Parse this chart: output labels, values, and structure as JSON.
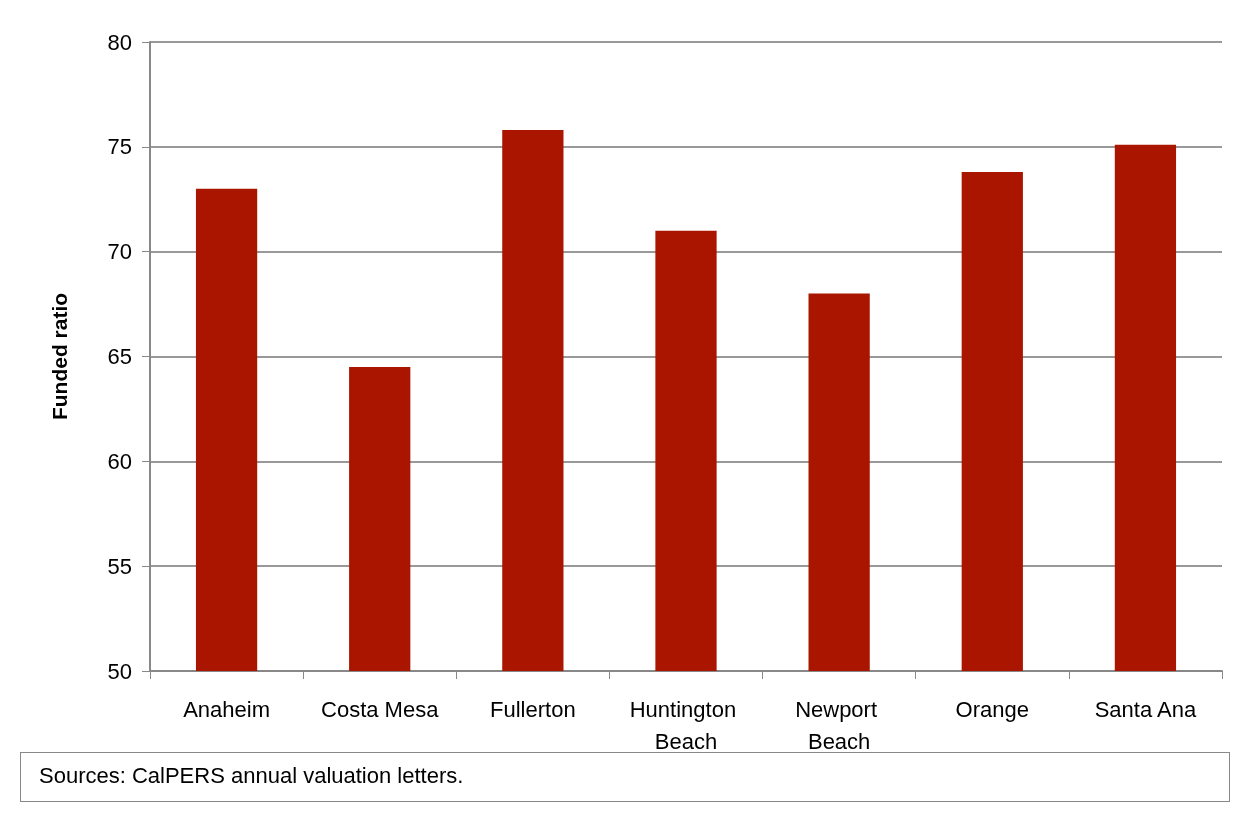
{
  "chart_data": {
    "type": "bar",
    "categories": [
      "Anaheim",
      "Costa Mesa",
      "Fullerton",
      "Huntington Beach",
      "Newport Beach",
      "Orange",
      "Santa Ana"
    ],
    "values": [
      73.0,
      64.5,
      75.8,
      71.0,
      68.0,
      73.8,
      75.1
    ],
    "color": "#aa1500",
    "ylabel": "Funded ratio",
    "ylim": [
      50,
      80
    ],
    "yticks": [
      50,
      55,
      60,
      65,
      70,
      75,
      80
    ],
    "grid": "y",
    "annotations": [
      "Sources: CalPERS annual valuation letters."
    ]
  }
}
